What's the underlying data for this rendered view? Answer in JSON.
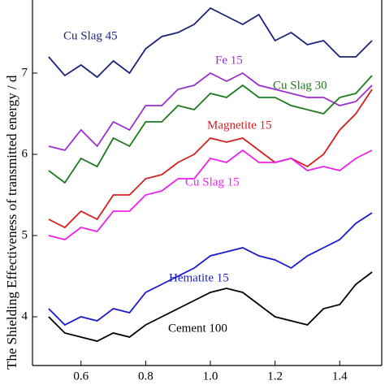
{
  "chart_data": {
    "type": "line",
    "y_label": "The Shielding Effectiveness of transmitted energy / d",
    "x": [
      0.5,
      0.55,
      0.6,
      0.65,
      0.7,
      0.75,
      0.8,
      0.85,
      0.9,
      0.95,
      1.0,
      1.05,
      1.1,
      1.15,
      1.2,
      1.25,
      1.3,
      1.35,
      1.4,
      1.45,
      1.5
    ],
    "series": [
      {
        "name": "Cu Slag 45",
        "color": "#1c237a",
        "values": [
          7.2,
          6.97,
          7.1,
          6.95,
          7.15,
          7.0,
          7.3,
          7.45,
          7.5,
          7.6,
          7.8,
          7.7,
          7.6,
          7.72,
          7.4,
          7.5,
          7.35,
          7.4,
          7.2,
          7.2,
          7.4
        ]
      },
      {
        "name": "Fe 15",
        "color": "#9a2fd0",
        "values": [
          6.1,
          6.05,
          6.3,
          6.1,
          6.4,
          6.3,
          6.6,
          6.6,
          6.8,
          6.85,
          7.0,
          6.9,
          7.0,
          6.85,
          6.8,
          6.75,
          6.7,
          6.7,
          6.6,
          6.65,
          6.85
        ]
      },
      {
        "name": "Cu Slag 30",
        "color": "#1b7a1b",
        "values": [
          5.8,
          5.65,
          5.95,
          5.85,
          6.2,
          6.1,
          6.4,
          6.4,
          6.6,
          6.55,
          6.75,
          6.7,
          6.85,
          6.7,
          6.7,
          6.6,
          6.55,
          6.5,
          6.7,
          6.75,
          6.97
        ]
      },
      {
        "name": "Magnetite 15",
        "color": "#d42020",
        "values": [
          5.2,
          5.1,
          5.3,
          5.2,
          5.5,
          5.5,
          5.7,
          5.75,
          5.9,
          6.0,
          6.2,
          6.15,
          6.2,
          6.05,
          5.9,
          5.95,
          5.85,
          6.0,
          6.3,
          6.5,
          6.8
        ]
      },
      {
        "name": "Cu Slag 15",
        "color": "#ee22ee",
        "values": [
          5.0,
          4.95,
          5.1,
          5.05,
          5.3,
          5.3,
          5.5,
          5.55,
          5.7,
          5.7,
          5.95,
          5.9,
          6.05,
          5.9,
          5.9,
          5.95,
          5.8,
          5.85,
          5.8,
          5.95,
          6.05
        ]
      },
      {
        "name": "Hematite 15",
        "color": "#1a1acc",
        "values": [
          4.1,
          3.9,
          4.0,
          3.95,
          4.1,
          4.05,
          4.3,
          4.4,
          4.5,
          4.6,
          4.75,
          4.8,
          4.85,
          4.75,
          4.7,
          4.6,
          4.75,
          4.85,
          4.95,
          5.15,
          5.28
        ]
      },
      {
        "name": "Cement 100",
        "color": "#000000",
        "values": [
          4.0,
          3.8,
          3.75,
          3.7,
          3.8,
          3.75,
          3.9,
          4.0,
          4.1,
          4.2,
          4.3,
          4.35,
          4.3,
          4.15,
          4.0,
          3.95,
          3.9,
          4.1,
          4.15,
          4.4,
          4.55
        ]
      }
    ],
    "xlim": [
      0.45,
      1.53
    ],
    "xticks": [
      0.6,
      0.8,
      {
        "value": 1,
        "label": "1.0"
      },
      1.2,
      1.4
    ],
    "ylim": [
      3.4,
      7.9
    ],
    "yticks": [
      4,
      5,
      6,
      7
    ]
  }
}
